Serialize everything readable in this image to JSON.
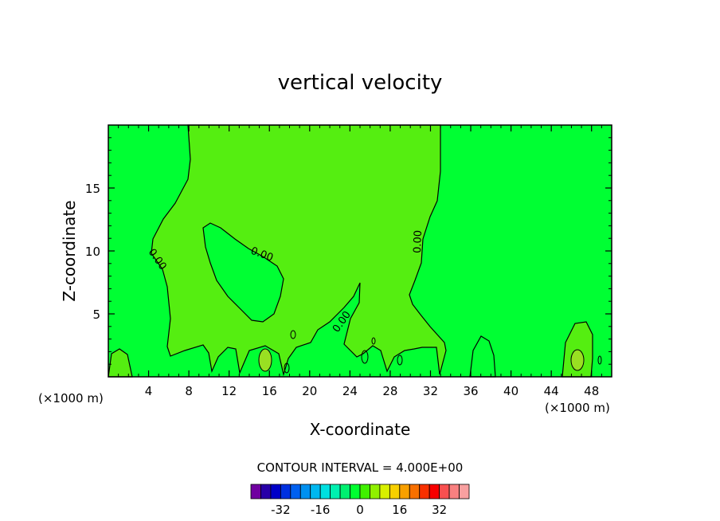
{
  "chart_data": {
    "type": "contour",
    "title": "vertical velocity",
    "xlabel": "X-coordinate",
    "ylabel": "Z-coordinate",
    "x_unit_label": "(×1000 m)",
    "x_unit_label_right": "(×1000 m)",
    "xlim": [
      0,
      50
    ],
    "ylim": [
      0,
      20
    ],
    "x_ticks": [
      4,
      8,
      12,
      16,
      20,
      24,
      28,
      32,
      36,
      40,
      44,
      48
    ],
    "y_ticks": [
      5,
      10,
      15
    ],
    "contour_interval_text": "CONTOUR INTERVAL = 4.000E+00",
    "contour_label": "0.00",
    "colorbar": {
      "ticks": [
        -32,
        -16,
        0,
        16,
        32
      ],
      "colors": [
        "#7000a0",
        "#2800a8",
        "#0000c8",
        "#0030e0",
        "#0060f0",
        "#0090f0",
        "#00b8f0",
        "#00e0e0",
        "#00f0b0",
        "#00f070",
        "#00ff30",
        "#40f000",
        "#90f000",
        "#d8f000",
        "#f8d000",
        "#f8a000",
        "#f87000",
        "#f83000",
        "#f80000",
        "#f85050",
        "#f88080",
        "#f8a0a0"
      ]
    },
    "region_colors": {
      "zero_band": "#55ee11",
      "weak_positive": "#00ff33",
      "strong_positive": "#99e022"
    }
  }
}
